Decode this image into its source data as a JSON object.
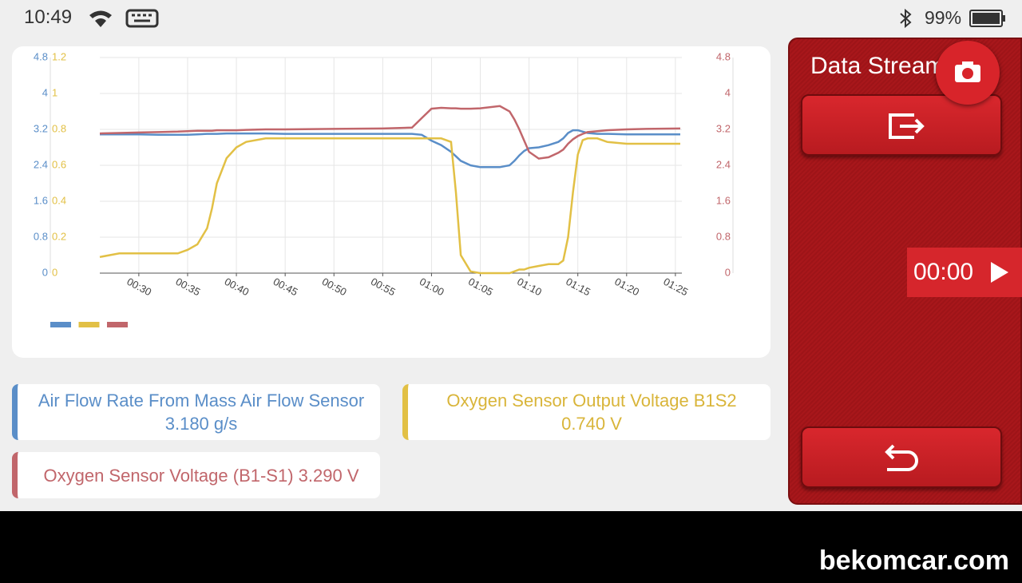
{
  "status_bar": {
    "time": "10:49",
    "battery": "99%"
  },
  "chart_data": {
    "type": "line",
    "x": [
      26,
      28,
      30,
      32,
      34,
      35,
      36,
      37,
      37.5,
      38,
      39,
      40,
      41,
      43,
      45,
      50,
      55,
      58,
      59,
      60,
      61,
      62,
      62.5,
      63,
      64,
      65,
      67,
      68,
      68.5,
      69,
      69.5,
      70,
      71,
      72,
      73,
      73.5,
      74,
      74.5,
      75,
      75.5,
      76,
      77,
      78,
      80,
      82,
      85.5
    ],
    "xlim": [
      26,
      85.5
    ],
    "xticks": [
      {
        "value": 30,
        "label": "00:30"
      },
      {
        "value": 35,
        "label": "00:35"
      },
      {
        "value": 40,
        "label": "00:40"
      },
      {
        "value": 45,
        "label": "00:45"
      },
      {
        "value": 50,
        "label": "00:50"
      },
      {
        "value": 55,
        "label": "00:55"
      },
      {
        "value": 60,
        "label": "01:00"
      },
      {
        "value": 65,
        "label": "01:05"
      },
      {
        "value": 70,
        "label": "01:10"
      },
      {
        "value": 75,
        "label": "01:15"
      },
      {
        "value": 80,
        "label": "01:20"
      },
      {
        "value": 85,
        "label": "01:25"
      }
    ],
    "ylim": [
      0,
      4.8
    ],
    "yticks": [
      0,
      0.8,
      1.6,
      2.4,
      3.2,
      4,
      4.8
    ],
    "y2lim": [
      0,
      1.2
    ],
    "y2ticks": [
      0,
      0.2,
      0.4,
      0.6,
      0.8,
      1,
      1.2
    ],
    "y3lim": [
      0,
      4.8
    ],
    "y3ticks": [
      0,
      0.8,
      1.6,
      2.4,
      3.2,
      4,
      4.8
    ],
    "grid": true,
    "series": [
      {
        "name": "Air Flow Rate From Mass Air Flow Sensor",
        "color": "#5a8ec8",
        "axis": "y",
        "values": [
          3.09,
          3.09,
          3.09,
          3.08,
          3.08,
          3.08,
          3.09,
          3.1,
          3.1,
          3.1,
          3.11,
          3.11,
          3.11,
          3.11,
          3.1,
          3.1,
          3.1,
          3.1,
          3.08,
          2.95,
          2.85,
          2.7,
          2.6,
          2.5,
          2.4,
          2.36,
          2.36,
          2.4,
          2.5,
          2.62,
          2.72,
          2.78,
          2.8,
          2.85,
          2.92,
          3.0,
          3.12,
          3.18,
          3.18,
          3.15,
          3.12,
          3.1,
          3.1,
          3.09,
          3.09,
          3.09
        ]
      },
      {
        "name": "Oxygen Sensor Output Voltage B1S2",
        "color": "#e2c045",
        "axis": "y2",
        "values": [
          0.09,
          0.11,
          0.11,
          0.11,
          0.11,
          0.13,
          0.16,
          0.25,
          0.36,
          0.5,
          0.64,
          0.7,
          0.73,
          0.75,
          0.75,
          0.75,
          0.75,
          0.75,
          0.75,
          0.75,
          0.75,
          0.73,
          0.45,
          0.1,
          0.01,
          0,
          0,
          0,
          0.01,
          0.02,
          0.02,
          0.03,
          0.04,
          0.05,
          0.05,
          0.07,
          0.2,
          0.45,
          0.66,
          0.74,
          0.75,
          0.75,
          0.73,
          0.72,
          0.72,
          0.72
        ]
      },
      {
        "name": "Oxygen Sensor Voltage (B1-S1)",
        "color": "#c1666b",
        "axis": "y3",
        "values": [
          3.11,
          3.12,
          3.13,
          3.14,
          3.15,
          3.16,
          3.17,
          3.17,
          3.17,
          3.18,
          3.18,
          3.18,
          3.19,
          3.2,
          3.2,
          3.21,
          3.22,
          3.24,
          3.45,
          3.66,
          3.68,
          3.67,
          3.67,
          3.66,
          3.66,
          3.67,
          3.72,
          3.6,
          3.42,
          3.2,
          2.95,
          2.7,
          2.55,
          2.58,
          2.68,
          2.75,
          2.88,
          2.98,
          3.05,
          3.1,
          3.14,
          3.16,
          3.18,
          3.2,
          3.21,
          3.22
        ]
      }
    ]
  },
  "readings": [
    "3.180 g/s",
    "0.740 V",
    "3.290 V"
  ],
  "side_panel": {
    "title": "Data Stream",
    "timer": "00:00"
  },
  "watermark": "bekomcar.com"
}
